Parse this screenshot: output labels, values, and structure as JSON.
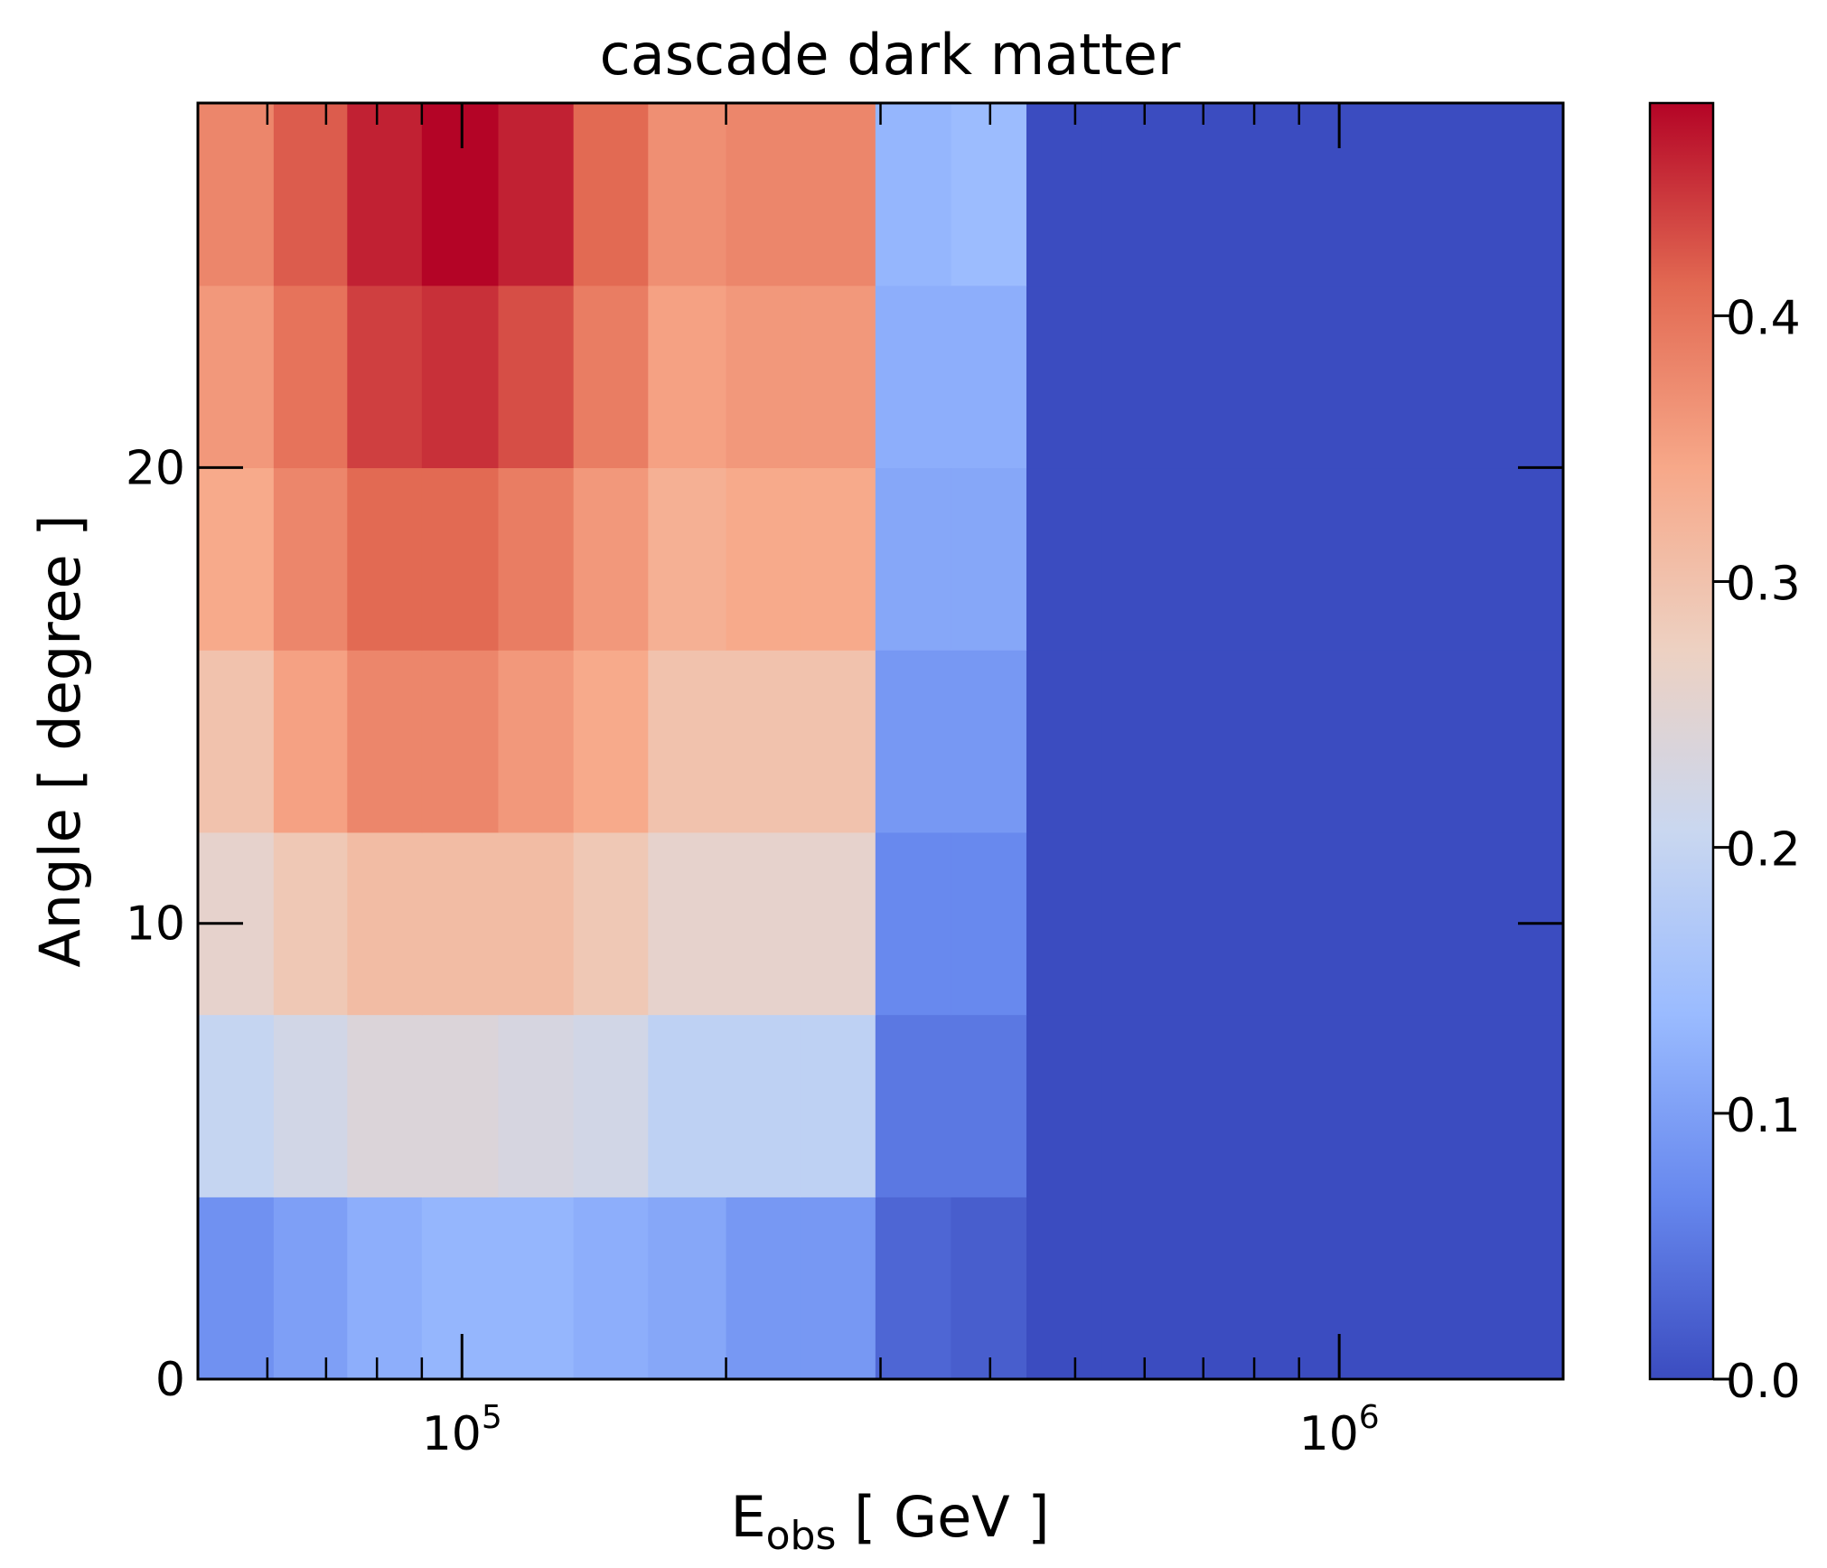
{
  "chart_data": {
    "type": "heatmap",
    "title": "cascade dark matter",
    "xlabel_main": "E",
    "xlabel_sub": "obs",
    "xlabel_rest": " [ GeV ]",
    "ylabel": "Angle [ degree ]",
    "x_scale": "log",
    "xlim": [
      50000,
      1800000
    ],
    "ylim": [
      0,
      28
    ],
    "x_edges": [
      50000,
      61000,
      74000,
      90000,
      110000,
      134000,
      163000,
      200000,
      243000,
      296000,
      361000,
      440000,
      536000,
      1800000
    ],
    "y_edges": [
      0,
      4,
      8,
      12,
      16,
      20,
      24,
      28
    ],
    "z_values": [
      [
        0.08,
        0.1,
        0.12,
        0.13,
        0.13,
        0.12,
        0.11,
        0.09,
        0.09,
        0.03,
        0.02,
        0.0,
        0.0
      ],
      [
        0.2,
        0.22,
        0.24,
        0.24,
        0.23,
        0.22,
        0.19,
        0.19,
        0.19,
        0.05,
        0.05,
        0.0,
        0.0
      ],
      [
        0.26,
        0.29,
        0.31,
        0.31,
        0.31,
        0.29,
        0.26,
        0.26,
        0.26,
        0.07,
        0.07,
        0.0,
        0.0
      ],
      [
        0.3,
        0.35,
        0.38,
        0.38,
        0.36,
        0.34,
        0.3,
        0.3,
        0.3,
        0.09,
        0.09,
        0.0,
        0.0
      ],
      [
        0.34,
        0.38,
        0.41,
        0.41,
        0.39,
        0.36,
        0.33,
        0.34,
        0.34,
        0.11,
        0.11,
        0.0,
        0.0
      ],
      [
        0.36,
        0.4,
        0.44,
        0.45,
        0.43,
        0.39,
        0.35,
        0.36,
        0.36,
        0.12,
        0.12,
        0.0,
        0.0
      ],
      [
        0.38,
        0.42,
        0.46,
        0.48,
        0.46,
        0.41,
        0.37,
        0.38,
        0.38,
        0.13,
        0.14,
        0.0,
        0.0
      ]
    ],
    "zlim": [
      0,
      0.48
    ],
    "x_ticks": [
      {
        "value": 100000,
        "base": "10",
        "exp": "5"
      },
      {
        "value": 1000000,
        "base": "10",
        "exp": "6"
      }
    ],
    "x_minor_ticks": [
      60000,
      70000,
      80000,
      90000,
      200000,
      300000,
      400000,
      500000,
      600000,
      700000,
      800000,
      900000
    ],
    "y_ticks": [
      0,
      10,
      20
    ],
    "y_tick_labels": [
      "0",
      "10",
      "20"
    ],
    "colorbar_ticks": [
      0.0,
      0.1,
      0.2,
      0.3,
      0.4
    ],
    "colorbar_tick_labels": [
      "0.0",
      "0.1",
      "0.2",
      "0.3",
      "0.4"
    ],
    "colormap": "coolwarm",
    "colormap_stops": [
      "#3b4cc0",
      "#6788ee",
      "#9abbff",
      "#c9d7f0",
      "#edd1c2",
      "#f7a889",
      "#e26952",
      "#b40426"
    ],
    "grid": false
  }
}
